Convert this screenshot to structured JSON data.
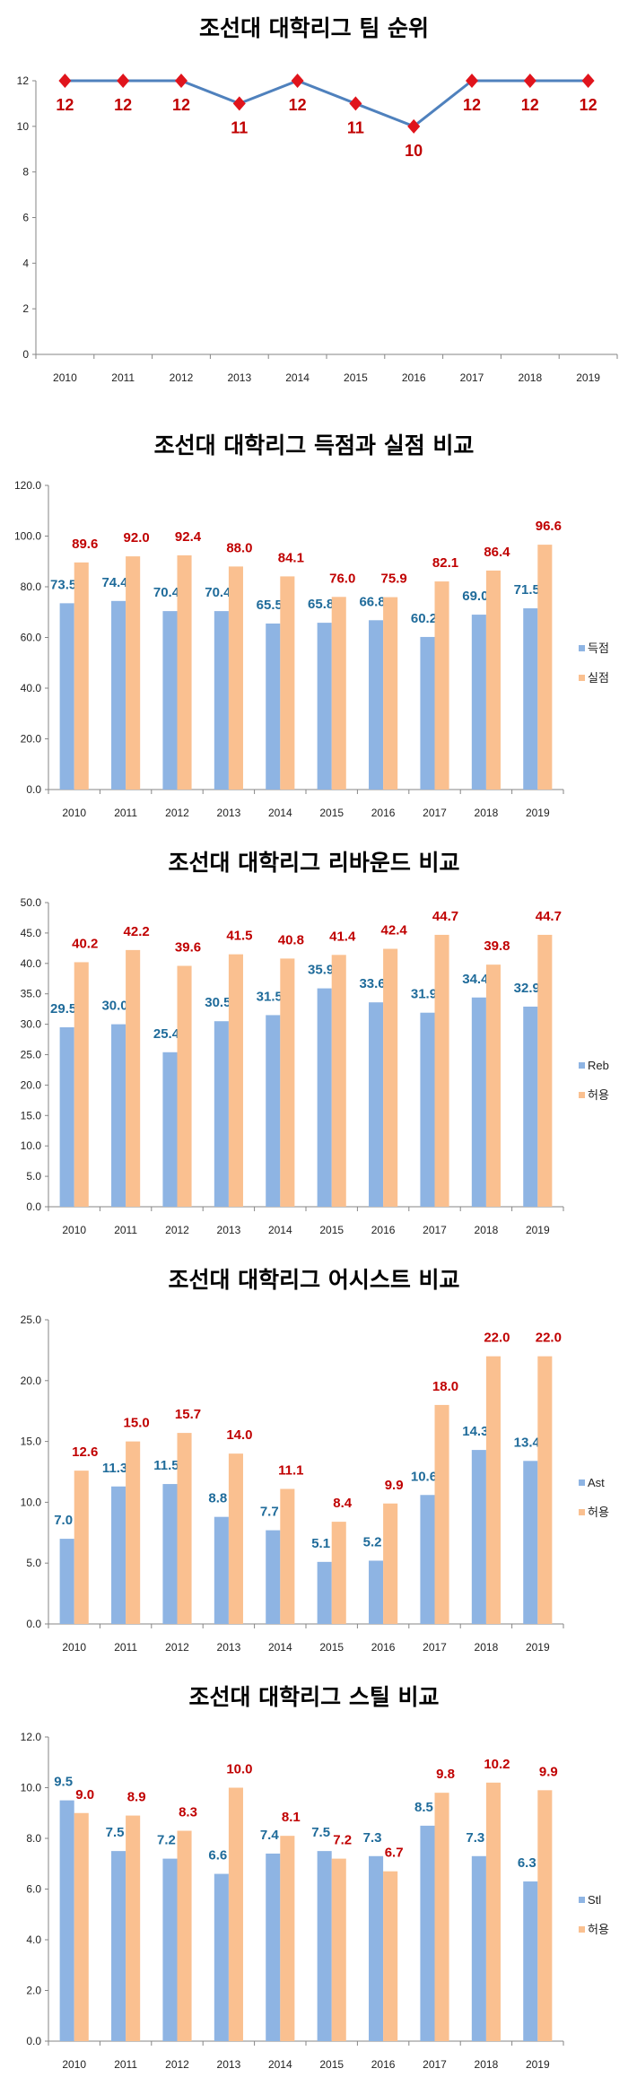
{
  "chart_data": [
    {
      "type": "line",
      "title": "조선대 대학리그 팀 순위",
      "categories": [
        "2010",
        "2011",
        "2012",
        "2013",
        "2014",
        "2015",
        "2016",
        "2017",
        "2018",
        "2019"
      ],
      "series": [
        {
          "values": [
            12,
            12,
            12,
            11,
            12,
            11,
            10,
            12,
            12,
            12
          ],
          "color": "#4f81bd",
          "marker_color": "#e0141c",
          "label_color": "#c00000"
        }
      ],
      "ylim": [
        0,
        12
      ],
      "yticks": [
        "0",
        "2",
        "4",
        "6",
        "8",
        "10",
        "12"
      ],
      "grid": false,
      "legend": "none"
    },
    {
      "type": "bar",
      "title": "조선대 대학리그 득점과 실점 비교",
      "categories": [
        "2010",
        "2011",
        "2012",
        "2013",
        "2014",
        "2015",
        "2016",
        "2017",
        "2018",
        "2019"
      ],
      "series": [
        {
          "name": "득점",
          "values": [
            73.5,
            74.4,
            70.4,
            70.4,
            65.5,
            65.8,
            66.8,
            60.2,
            69.0,
            71.5
          ],
          "color": "#8eb4e3",
          "label_color": "#1f6b9a"
        },
        {
          "name": "실점",
          "values": [
            89.6,
            92.0,
            92.4,
            88.0,
            84.1,
            76.0,
            75.9,
            82.1,
            86.4,
            96.6
          ],
          "color": "#fac090",
          "label_color": "#c00000"
        }
      ],
      "ylim": [
        0,
        120
      ],
      "yticks": [
        "0.0",
        "20.0",
        "40.0",
        "60.0",
        "80.0",
        "100.0",
        "120.0"
      ],
      "grid": false,
      "legend": "right"
    },
    {
      "type": "bar",
      "title": "조선대 대학리그 리바운드 비교",
      "categories": [
        "2010",
        "2011",
        "2012",
        "2013",
        "2014",
        "2015",
        "2016",
        "2017",
        "2018",
        "2019"
      ],
      "series": [
        {
          "name": "Reb",
          "values": [
            29.5,
            30.0,
            25.4,
            30.5,
            31.5,
            35.9,
            33.6,
            31.9,
            34.4,
            32.9
          ],
          "color": "#8eb4e3",
          "label_color": "#1f6b9a"
        },
        {
          "name": "허용",
          "values": [
            40.2,
            42.2,
            39.6,
            41.5,
            40.8,
            41.4,
            42.4,
            44.7,
            39.8,
            44.7
          ],
          "color": "#fac090",
          "label_color": "#c00000"
        }
      ],
      "ylim": [
        0,
        50
      ],
      "yticks": [
        "0.0",
        "5.0",
        "10.0",
        "15.0",
        "20.0",
        "25.0",
        "30.0",
        "35.0",
        "40.0",
        "45.0",
        "50.0"
      ],
      "grid": false,
      "legend": "right"
    },
    {
      "type": "bar",
      "title": "조선대 대학리그 어시스트 비교",
      "categories": [
        "2010",
        "2011",
        "2012",
        "2013",
        "2014",
        "2015",
        "2016",
        "2017",
        "2018",
        "2019"
      ],
      "series": [
        {
          "name": "Ast",
          "values": [
            7.0,
            11.3,
            11.5,
            8.8,
            7.7,
            5.1,
            5.2,
            10.6,
            14.3,
            13.4
          ],
          "color": "#8eb4e3",
          "label_color": "#1f6b9a"
        },
        {
          "name": "허용",
          "values": [
            12.6,
            15.0,
            15.7,
            14.0,
            11.1,
            8.4,
            9.9,
            18.0,
            22.0,
            22.0
          ],
          "color": "#fac090",
          "label_color": "#c00000"
        }
      ],
      "ylim": [
        0,
        25
      ],
      "yticks": [
        "0.0",
        "5.0",
        "10.0",
        "15.0",
        "20.0",
        "25.0"
      ],
      "grid": false,
      "legend": "right"
    },
    {
      "type": "bar",
      "title": "조선대 대학리그 스틸 비교",
      "categories": [
        "2010",
        "2011",
        "2012",
        "2013",
        "2014",
        "2015",
        "2016",
        "2017",
        "2018",
        "2019"
      ],
      "series": [
        {
          "name": "Stl",
          "values": [
            9.5,
            7.5,
            7.2,
            6.6,
            7.4,
            7.5,
            7.3,
            8.5,
            7.3,
            6.3
          ],
          "color": "#8eb4e3",
          "label_color": "#1f6b9a"
        },
        {
          "name": "허용",
          "values": [
            9.0,
            8.9,
            8.3,
            10.0,
            8.1,
            7.2,
            6.7,
            9.8,
            10.2,
            9.9
          ],
          "color": "#fac090",
          "label_color": "#c00000"
        }
      ],
      "ylim": [
        0,
        12
      ],
      "yticks": [
        "0.0",
        "2.0",
        "4.0",
        "6.0",
        "8.0",
        "10.0",
        "12.0"
      ],
      "grid": false,
      "legend": "right"
    }
  ]
}
